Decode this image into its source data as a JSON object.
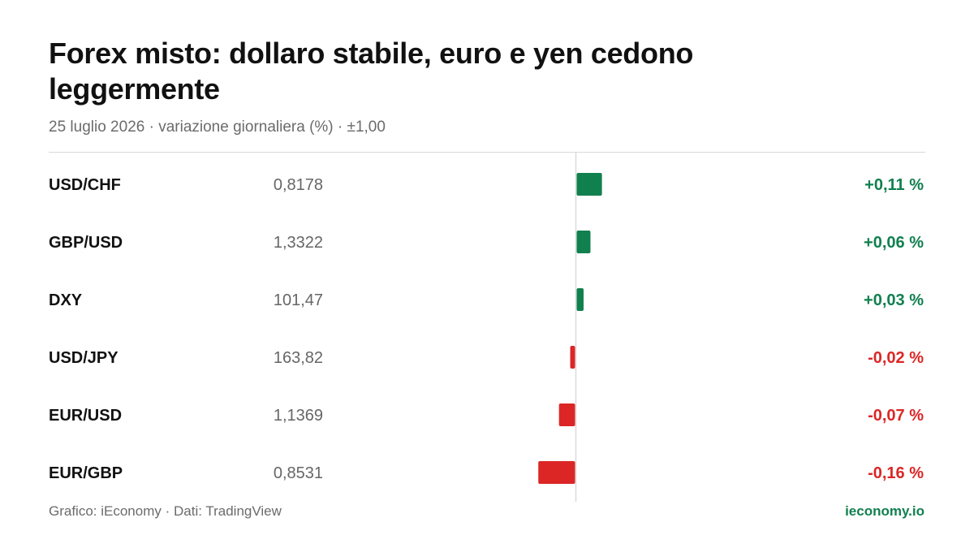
{
  "header": {
    "title": "Forex misto: dollaro stabile, euro e yen cedono leggermente",
    "subtitle": "25 luglio 2026 · variazione giornaliera (%) · ±1,00"
  },
  "footer": {
    "credit": "Grafico: iEconomy · Dati: TradingView",
    "site": "ieconomy.io"
  },
  "colors": {
    "positive": "#11804f",
    "negative": "#dc2626",
    "axis": "#d9d9d9",
    "brand": "#11804f"
  },
  "chart_data": {
    "type": "bar",
    "orientation": "horizontal",
    "xlim": [
      -1,
      1
    ],
    "rows": [
      {
        "pair": "USD/CHF",
        "price": "0,8178",
        "change": 0.11,
        "change_label": "+0,11 %"
      },
      {
        "pair": "GBP/USD",
        "price": "1,3322",
        "change": 0.06,
        "change_label": "+0,06 %"
      },
      {
        "pair": "DXY",
        "price": "101,47",
        "change": 0.03,
        "change_label": "+0,03 %"
      },
      {
        "pair": "USD/JPY",
        "price": "163,82",
        "change": -0.02,
        "change_label": "-0,02 %"
      },
      {
        "pair": "EUR/USD",
        "price": "1,1369",
        "change": -0.07,
        "change_label": "-0,07 %"
      },
      {
        "pair": "EUR/GBP",
        "price": "0,8531",
        "change": -0.16,
        "change_label": "-0,16 %"
      }
    ]
  }
}
